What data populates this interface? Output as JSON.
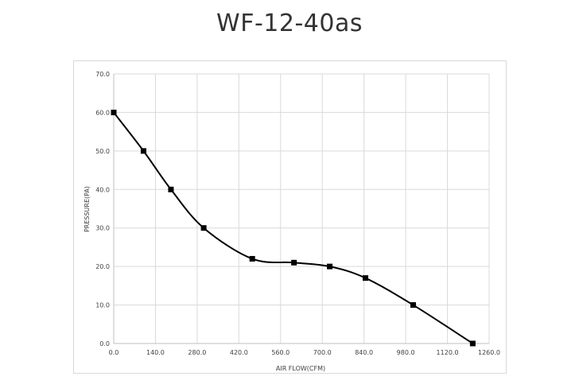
{
  "title": "WF-12-40as",
  "chart_data": {
    "type": "line",
    "title": "WF-12-40as",
    "xlabel": "AIR FLOW(CFM)",
    "ylabel": "PRESSURE(PA)",
    "xlim": [
      0,
      1260
    ],
    "ylim": [
      0,
      70
    ],
    "xticks": [
      "0.0",
      "140.0",
      "280.0",
      "420.0",
      "560.0",
      "700.0",
      "840.0",
      "980.0",
      "1120.0",
      "1260.0"
    ],
    "yticks": [
      "0.0",
      "10.0",
      "20.0",
      "30.0",
      "40.0",
      "50.0",
      "60.0",
      "70.0"
    ],
    "grid": true,
    "legend": "none",
    "smooth": true,
    "marker": "square",
    "line_color": "#000000",
    "grid_color": "#d9d9d9",
    "series": [
      {
        "x": [
          0,
          100,
          192,
          302,
          465,
          605,
          725,
          845,
          1005,
          1205
        ],
        "y": [
          60,
          50,
          40,
          30,
          22,
          21,
          20,
          17,
          10,
          0
        ]
      }
    ]
  }
}
